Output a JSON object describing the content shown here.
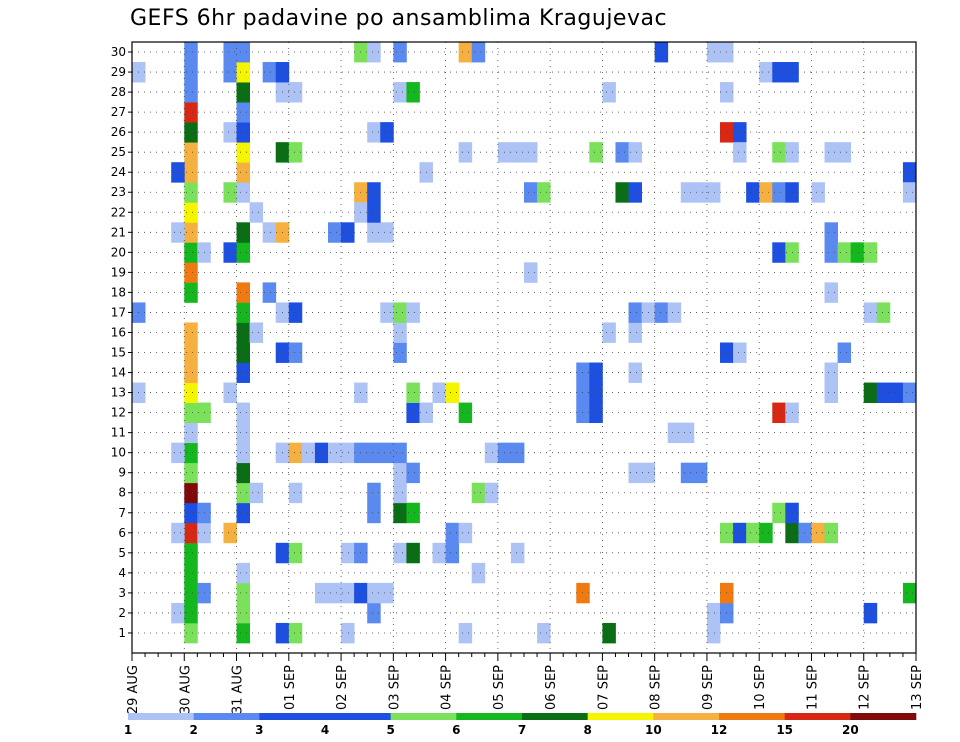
{
  "title": "GEFS 6hr padavine po ansamblima Kragujevac",
  "chart_data": {
    "type": "heatmap",
    "title": "GEFS 6hr padavine po ansamblima Kragujevac",
    "y_categories": [
      "1",
      "2",
      "3",
      "4",
      "5",
      "6",
      "7",
      "8",
      "9",
      "10",
      "11",
      "12",
      "13",
      "14",
      "15",
      "16",
      "17",
      "18",
      "19",
      "20",
      "21",
      "22",
      "23",
      "24",
      "25",
      "26",
      "27",
      "28",
      "29",
      "30"
    ],
    "x_tick_labels": [
      "29 AUG",
      "30 AUG",
      "31 AUG",
      "01 SEP",
      "02 SEP",
      "03 SEP",
      "04 SEP",
      "05 SEP",
      "06 SEP",
      "07 SEP",
      "08 SEP",
      "09 SEP",
      "10 SEP",
      "11 SEP",
      "12 SEP",
      "13 SEP"
    ],
    "x_steps_per_day": 4,
    "x_range_steps": [
      0,
      60
    ],
    "grid": true,
    "legend": {
      "position": "bottom",
      "labels": [
        "1",
        "2",
        "3",
        "4",
        "5",
        "6",
        "7",
        "8",
        "10",
        "12",
        "15",
        "20"
      ],
      "colors": [
        "#aec3f5",
        "#5a8af0",
        "#1d4fe0",
        "#1d4fe0",
        "#7be05a",
        "#14b81e",
        "#0a6e14",
        "#f5f500",
        "#f5b040",
        "#f07a12",
        "#d82814",
        "#800a0a"
      ]
    },
    "cells": [
      {
        "x": 4,
        "y": 1,
        "v": 5
      },
      {
        "x": 8,
        "y": 1,
        "v": 6
      },
      {
        "x": 11,
        "y": 1,
        "v": 3
      },
      {
        "x": 12,
        "y": 1,
        "v": 5
      },
      {
        "x": 31,
        "y": 1,
        "v": 1
      },
      {
        "x": 36,
        "y": 1,
        "v": 7
      },
      {
        "x": 44,
        "y": 1,
        "v": 1
      },
      {
        "x": 3,
        "y": 2,
        "v": 1
      },
      {
        "x": 4,
        "y": 2,
        "v": 6
      },
      {
        "x": 8,
        "y": 2,
        "v": 5
      },
      {
        "x": 8,
        "y": 3,
        "v": 5
      },
      {
        "x": 8,
        "y": 4,
        "v": 1
      },
      {
        "x": 16,
        "y": 1,
        "v": 1
      },
      {
        "x": 44,
        "y": 2,
        "v": 1
      },
      {
        "x": 45,
        "y": 2,
        "v": 2
      },
      {
        "x": 4,
        "y": 3,
        "v": 6
      },
      {
        "x": 4,
        "y": 4,
        "v": 6
      },
      {
        "x": 4,
        "y": 5,
        "v": 6
      },
      {
        "x": 4,
        "y": 6,
        "v": 15
      },
      {
        "x": 4,
        "y": 7,
        "v": 3
      },
      {
        "x": 4,
        "y": 8,
        "v": 20
      },
      {
        "x": 4,
        "y": 9,
        "v": 5
      },
      {
        "x": 4,
        "y": 10,
        "v": 6
      },
      {
        "x": 4,
        "y": 11,
        "v": 1
      },
      {
        "x": 4,
        "y": 12,
        "v": 5
      },
      {
        "x": 4,
        "y": 13,
        "v": 8
      },
      {
        "x": 4,
        "y": 14,
        "v": 10
      },
      {
        "x": 4,
        "y": 15,
        "v": 10
      },
      {
        "x": 4,
        "y": 16,
        "v": 10
      },
      {
        "x": 4,
        "y": 18,
        "v": 6
      },
      {
        "x": 4,
        "y": 19,
        "v": 12
      },
      {
        "x": 4,
        "y": 20,
        "v": 6
      },
      {
        "x": 4,
        "y": 21,
        "v": 10
      },
      {
        "x": 4,
        "y": 22,
        "v": 8
      },
      {
        "x": 4,
        "y": 23,
        "v": 5
      },
      {
        "x": 4,
        "y": 24,
        "v": 10
      },
      {
        "x": 4,
        "y": 25,
        "v": 10
      },
      {
        "x": 4,
        "y": 26,
        "v": 7
      },
      {
        "x": 4,
        "y": 27,
        "v": 15
      },
      {
        "x": 4,
        "y": 28,
        "v": 2
      },
      {
        "x": 4,
        "y": 29,
        "v": 2
      },
      {
        "x": 4,
        "y": 30,
        "v": 2
      },
      {
        "x": 3,
        "y": 6,
        "v": 1
      },
      {
        "x": 3,
        "y": 10,
        "v": 1
      },
      {
        "x": 3,
        "y": 21,
        "v": 1
      },
      {
        "x": 3,
        "y": 24,
        "v": 3
      },
      {
        "x": 5,
        "y": 3,
        "v": 2
      },
      {
        "x": 5,
        "y": 6,
        "v": 1
      },
      {
        "x": 5,
        "y": 7,
        "v": 2
      },
      {
        "x": 5,
        "y": 12,
        "v": 5
      },
      {
        "x": 5,
        "y": 20,
        "v": 1
      },
      {
        "x": 0,
        "y": 13,
        "v": 1
      },
      {
        "x": 0,
        "y": 17,
        "v": 2
      },
      {
        "x": 0,
        "y": 29,
        "v": 1
      },
      {
        "x": 7,
        "y": 6,
        "v": 10
      },
      {
        "x": 7,
        "y": 13,
        "v": 1
      },
      {
        "x": 7,
        "y": 20,
        "v": 3
      },
      {
        "x": 7,
        "y": 23,
        "v": 5
      },
      {
        "x": 7,
        "y": 26,
        "v": 1
      },
      {
        "x": 7,
        "y": 29,
        "v": 2
      },
      {
        "x": 7,
        "y": 30,
        "v": 2
      },
      {
        "x": 8,
        "y": 7,
        "v": 3
      },
      {
        "x": 8,
        "y": 8,
        "v": 5
      },
      {
        "x": 8,
        "y": 9,
        "v": 7
      },
      {
        "x": 8,
        "y": 10,
        "v": 1
      },
      {
        "x": 8,
        "y": 11,
        "v": 1
      },
      {
        "x": 8,
        "y": 12,
        "v": 1
      },
      {
        "x": 8,
        "y": 14,
        "v": 3
      },
      {
        "x": 8,
        "y": 15,
        "v": 7
      },
      {
        "x": 8,
        "y": 16,
        "v": 7
      },
      {
        "x": 8,
        "y": 17,
        "v": 6
      },
      {
        "x": 8,
        "y": 18,
        "v": 12
      },
      {
        "x": 8,
        "y": 20,
        "v": 6
      },
      {
        "x": 8,
        "y": 21,
        "v": 7
      },
      {
        "x": 8,
        "y": 23,
        "v": 1
      },
      {
        "x": 8,
        "y": 24,
        "v": 10
      },
      {
        "x": 8,
        "y": 25,
        "v": 8
      },
      {
        "x": 8,
        "y": 26,
        "v": 3
      },
      {
        "x": 8,
        "y": 27,
        "v": 2
      },
      {
        "x": 8,
        "y": 28,
        "v": 7
      },
      {
        "x": 8,
        "y": 29,
        "v": 8
      },
      {
        "x": 8,
        "y": 30,
        "v": 2
      },
      {
        "x": 9,
        "y": 8,
        "v": 1
      },
      {
        "x": 9,
        "y": 16,
        "v": 1
      },
      {
        "x": 9,
        "y": 22,
        "v": 0
      },
      {
        "x": 10,
        "y": 18,
        "v": 2
      },
      {
        "x": 10,
        "y": 21,
        "v": 1
      },
      {
        "x": 10,
        "y": 29,
        "v": 2
      },
      {
        "x": 11,
        "y": 5,
        "v": 3
      },
      {
        "x": 11,
        "y": 10,
        "v": 1
      },
      {
        "x": 11,
        "y": 15,
        "v": 3
      },
      {
        "x": 11,
        "y": 17,
        "v": 1
      },
      {
        "x": 11,
        "y": 21,
        "v": 10
      },
      {
        "x": 11,
        "y": 25,
        "v": 7
      },
      {
        "x": 11,
        "y": 28,
        "v": 1
      },
      {
        "x": 11,
        "y": 29,
        "v": 3
      },
      {
        "x": 12,
        "y": 5,
        "v": 5
      },
      {
        "x": 12,
        "y": 8,
        "v": 1
      },
      {
        "x": 12,
        "y": 10,
        "v": 10
      },
      {
        "x": 12,
        "y": 15,
        "v": 2
      },
      {
        "x": 12,
        "y": 17,
        "v": 3
      },
      {
        "x": 12,
        "y": 25,
        "v": 5
      },
      {
        "x": 12,
        "y": 28,
        "v": 1
      },
      {
        "x": 13,
        "y": 10,
        "v": 1
      },
      {
        "x": 14,
        "y": 10,
        "v": 3
      },
      {
        "x": 14,
        "y": 3,
        "v": 1
      },
      {
        "x": 15,
        "y": 3,
        "v": 1
      },
      {
        "x": 15,
        "y": 10,
        "v": 1
      },
      {
        "x": 15,
        "y": 21,
        "v": 2
      },
      {
        "x": 16,
        "y": 5,
        "v": 1
      },
      {
        "x": 16,
        "y": 10,
        "v": 1
      },
      {
        "x": 16,
        "y": 21,
        "v": 3
      },
      {
        "x": 16,
        "y": 3,
        "v": 1
      },
      {
        "x": 17,
        "y": 5,
        "v": 2
      },
      {
        "x": 17,
        "y": 10,
        "v": 2
      },
      {
        "x": 17,
        "y": 13,
        "v": 0
      },
      {
        "x": 17,
        "y": 30,
        "v": 5
      },
      {
        "x": 17,
        "y": 3,
        "v": 3
      },
      {
        "x": 17,
        "y": 23,
        "v": 10
      },
      {
        "x": 17,
        "y": 22,
        "v": 1
      },
      {
        "x": 18,
        "y": 2,
        "v": 2
      },
      {
        "x": 18,
        "y": 3,
        "v": 1
      },
      {
        "x": 18,
        "y": 7,
        "v": 2
      },
      {
        "x": 18,
        "y": 8,
        "v": 2
      },
      {
        "x": 18,
        "y": 10,
        "v": 2
      },
      {
        "x": 18,
        "y": 21,
        "v": 1
      },
      {
        "x": 18,
        "y": 22,
        "v": 3
      },
      {
        "x": 18,
        "y": 23,
        "v": 3
      },
      {
        "x": 18,
        "y": 26,
        "v": 1
      },
      {
        "x": 18,
        "y": 30,
        "v": 1
      },
      {
        "x": 19,
        "y": 3,
        "v": 1
      },
      {
        "x": 19,
        "y": 10,
        "v": 2
      },
      {
        "x": 19,
        "y": 17,
        "v": 1
      },
      {
        "x": 19,
        "y": 21,
        "v": 1
      },
      {
        "x": 19,
        "y": 26,
        "v": 3
      },
      {
        "x": 20,
        "y": 5,
        "v": 1
      },
      {
        "x": 20,
        "y": 7,
        "v": 7
      },
      {
        "x": 20,
        "y": 8,
        "v": 1
      },
      {
        "x": 20,
        "y": 9,
        "v": 1
      },
      {
        "x": 20,
        "y": 10,
        "v": 2
      },
      {
        "x": 20,
        "y": 15,
        "v": 2
      },
      {
        "x": 20,
        "y": 16,
        "v": 1
      },
      {
        "x": 20,
        "y": 17,
        "v": 5
      },
      {
        "x": 20,
        "y": 28,
        "v": 1
      },
      {
        "x": 20,
        "y": 30,
        "v": 2
      },
      {
        "x": 21,
        "y": 5,
        "v": 7
      },
      {
        "x": 21,
        "y": 7,
        "v": 6
      },
      {
        "x": 21,
        "y": 9,
        "v": 2
      },
      {
        "x": 21,
        "y": 12,
        "v": 3
      },
      {
        "x": 21,
        "y": 13,
        "v": 5
      },
      {
        "x": 21,
        "y": 17,
        "v": 1
      },
      {
        "x": 21,
        "y": 28,
        "v": 6
      },
      {
        "x": 22,
        "y": 12,
        "v": 1
      },
      {
        "x": 22,
        "y": 24,
        "v": 1
      },
      {
        "x": 23,
        "y": 5,
        "v": 1
      },
      {
        "x": 23,
        "y": 13,
        "v": 1
      },
      {
        "x": 24,
        "y": 5,
        "v": 2
      },
      {
        "x": 24,
        "y": 6,
        "v": 2
      },
      {
        "x": 24,
        "y": 13,
        "v": 8
      },
      {
        "x": 25,
        "y": 1,
        "v": 1
      },
      {
        "x": 25,
        "y": 6,
        "v": 1
      },
      {
        "x": 25,
        "y": 12,
        "v": 6
      },
      {
        "x": 25,
        "y": 30,
        "v": 10
      },
      {
        "x": 25,
        "y": 25,
        "v": 1
      },
      {
        "x": 26,
        "y": 4,
        "v": 1
      },
      {
        "x": 26,
        "y": 30,
        "v": 2
      },
      {
        "x": 26,
        "y": 8,
        "v": 5
      },
      {
        "x": 27,
        "y": 8,
        "v": 1
      },
      {
        "x": 27,
        "y": 10,
        "v": 0
      },
      {
        "x": 28,
        "y": 10,
        "v": 2
      },
      {
        "x": 29,
        "y": 10,
        "v": 2
      },
      {
        "x": 29,
        "y": 5,
        "v": 1
      },
      {
        "x": 28,
        "y": 25,
        "v": 1
      },
      {
        "x": 29,
        "y": 25,
        "v": 1
      },
      {
        "x": 30,
        "y": 25,
        "v": 1
      },
      {
        "x": 30,
        "y": 23,
        "v": 2
      },
      {
        "x": 31,
        "y": 23,
        "v": 5
      },
      {
        "x": 30,
        "y": 19,
        "v": 1
      },
      {
        "x": 34,
        "y": 12,
        "v": 2
      },
      {
        "x": 34,
        "y": 13,
        "v": 2
      },
      {
        "x": 34,
        "y": 14,
        "v": 2
      },
      {
        "x": 35,
        "y": 12,
        "v": 3
      },
      {
        "x": 35,
        "y": 13,
        "v": 3
      },
      {
        "x": 35,
        "y": 14,
        "v": 3
      },
      {
        "x": 34,
        "y": 3,
        "v": 12
      },
      {
        "x": 35,
        "y": 25,
        "v": 5
      },
      {
        "x": 36,
        "y": 16,
        "v": 1
      },
      {
        "x": 36,
        "y": 28,
        "v": 1
      },
      {
        "x": 37,
        "y": 23,
        "v": 7
      },
      {
        "x": 37,
        "y": 25,
        "v": 2
      },
      {
        "x": 38,
        "y": 23,
        "v": 3
      },
      {
        "x": 38,
        "y": 25,
        "v": 1
      },
      {
        "x": 38,
        "y": 9,
        "v": 1
      },
      {
        "x": 38,
        "y": 16,
        "v": 1
      },
      {
        "x": 38,
        "y": 17,
        "v": 2
      },
      {
        "x": 38,
        "y": 14,
        "v": 1
      },
      {
        "x": 39,
        "y": 9,
        "v": 1
      },
      {
        "x": 39,
        "y": 17,
        "v": 1
      },
      {
        "x": 40,
        "y": 17,
        "v": 2
      },
      {
        "x": 41,
        "y": 17,
        "v": 1
      },
      {
        "x": 40,
        "y": 30,
        "v": 3
      },
      {
        "x": 41,
        "y": 11,
        "v": 1
      },
      {
        "x": 42,
        "y": 11,
        "v": 1
      },
      {
        "x": 42,
        "y": 9,
        "v": 2
      },
      {
        "x": 43,
        "y": 9,
        "v": 2
      },
      {
        "x": 42,
        "y": 23,
        "v": 1
      },
      {
        "x": 43,
        "y": 23,
        "v": 1
      },
      {
        "x": 44,
        "y": 23,
        "v": 1
      },
      {
        "x": 45,
        "y": 26,
        "v": 15
      },
      {
        "x": 46,
        "y": 26,
        "v": 3
      },
      {
        "x": 45,
        "y": 3,
        "v": 12
      },
      {
        "x": 46,
        "y": 25,
        "v": 1
      },
      {
        "x": 44,
        "y": 30,
        "v": 1
      },
      {
        "x": 45,
        "y": 30,
        "v": 1
      },
      {
        "x": 45,
        "y": 6,
        "v": 5
      },
      {
        "x": 46,
        "y": 6,
        "v": 3
      },
      {
        "x": 47,
        "y": 6,
        "v": 5
      },
      {
        "x": 48,
        "y": 6,
        "v": 6
      },
      {
        "x": 45,
        "y": 15,
        "v": 3
      },
      {
        "x": 46,
        "y": 15,
        "v": 1
      },
      {
        "x": 45,
        "y": 28,
        "v": 1
      },
      {
        "x": 47,
        "y": 23,
        "v": 3
      },
      {
        "x": 48,
        "y": 23,
        "v": 10
      },
      {
        "x": 49,
        "y": 23,
        "v": 2
      },
      {
        "x": 50,
        "y": 23,
        "v": 3
      },
      {
        "x": 48,
        "y": 29,
        "v": 1
      },
      {
        "x": 49,
        "y": 29,
        "v": 3
      },
      {
        "x": 50,
        "y": 29,
        "v": 3
      },
      {
        "x": 49,
        "y": 7,
        "v": 5
      },
      {
        "x": 49,
        "y": 12,
        "v": 15
      },
      {
        "x": 50,
        "y": 12,
        "v": 1
      },
      {
        "x": 49,
        "y": 25,
        "v": 5
      },
      {
        "x": 50,
        "y": 25,
        "v": 1
      },
      {
        "x": 50,
        "y": 6,
        "v": 7
      },
      {
        "x": 50,
        "y": 7,
        "v": 3
      },
      {
        "x": 51,
        "y": 6,
        "v": 2
      },
      {
        "x": 52,
        "y": 6,
        "v": 10
      },
      {
        "x": 53,
        "y": 6,
        "v": 5
      },
      {
        "x": 49,
        "y": 20,
        "v": 3
      },
      {
        "x": 50,
        "y": 20,
        "v": 5
      },
      {
        "x": 52,
        "y": 23,
        "v": 1
      },
      {
        "x": 53,
        "y": 13,
        "v": 1
      },
      {
        "x": 53,
        "y": 14,
        "v": 1
      },
      {
        "x": 54,
        "y": 15,
        "v": 2
      },
      {
        "x": 53,
        "y": 18,
        "v": 1
      },
      {
        "x": 53,
        "y": 20,
        "v": 2
      },
      {
        "x": 53,
        "y": 21,
        "v": 2
      },
      {
        "x": 53,
        "y": 25,
        "v": 1
      },
      {
        "x": 54,
        "y": 25,
        "v": 1
      },
      {
        "x": 54,
        "y": 20,
        "v": 5
      },
      {
        "x": 55,
        "y": 20,
        "v": 6
      },
      {
        "x": 56,
        "y": 20,
        "v": 5
      },
      {
        "x": 56,
        "y": 13,
        "v": 7
      },
      {
        "x": 57,
        "y": 13,
        "v": 3
      },
      {
        "x": 58,
        "y": 13,
        "v": 3
      },
      {
        "x": 59,
        "y": 13,
        "v": 2
      },
      {
        "x": 56,
        "y": 2,
        "v": 3
      },
      {
        "x": 56,
        "y": 17,
        "v": 1
      },
      {
        "x": 57,
        "y": 17,
        "v": 5
      },
      {
        "x": 59,
        "y": 24,
        "v": 3
      },
      {
        "x": 59,
        "y": 23,
        "v": 1
      },
      {
        "x": 59,
        "y": 3,
        "v": 6
      }
    ]
  }
}
